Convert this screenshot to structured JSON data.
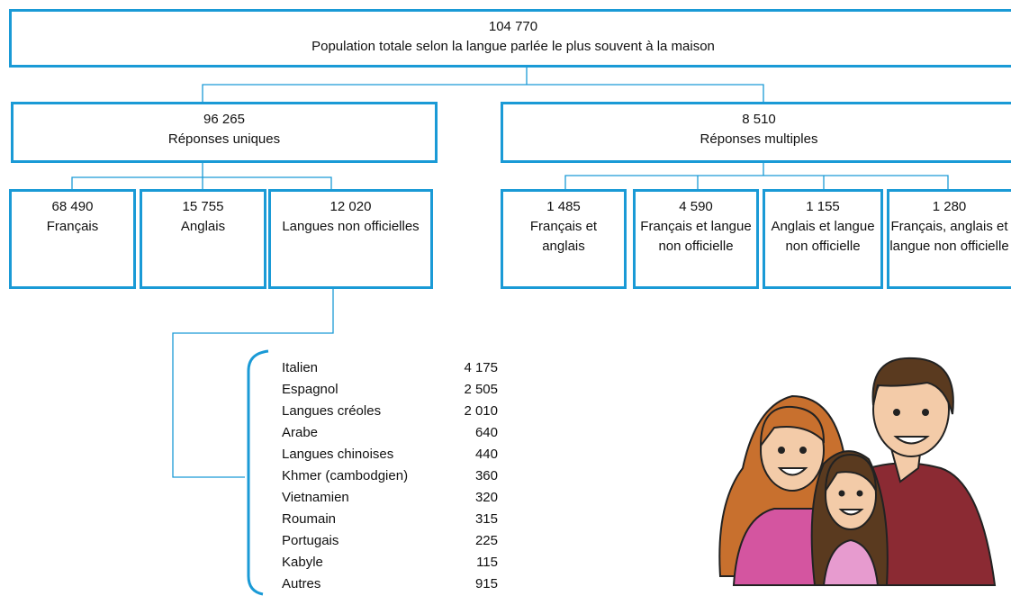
{
  "root": {
    "value": "104 770",
    "label": "Population totale selon la langue parlée le plus souvent à la maison"
  },
  "groups": [
    {
      "value": "96 265",
      "label": "Réponses uniques",
      "children": [
        {
          "value": "68 490",
          "label": "Français"
        },
        {
          "value": "15 755",
          "label": "Anglais"
        },
        {
          "value": "12 020",
          "label": "Langues non officielles"
        }
      ]
    },
    {
      "value": "8 510",
      "label": "Réponses multiples",
      "children": [
        {
          "value": "1 485",
          "label": "Français et anglais"
        },
        {
          "value": "4 590",
          "label": "Français et langue non officielle"
        },
        {
          "value": "1 155",
          "label": "Anglais et langue non officielle"
        },
        {
          "value": "1 280",
          "label": "Français, anglais et langue non officielle"
        }
      ]
    }
  ],
  "list": {
    "rows": [
      [
        "Italien",
        "4 175"
      ],
      [
        "Espagnol",
        "2 505"
      ],
      [
        "Langues créoles",
        "2 010"
      ],
      [
        "Arabe",
        "640"
      ],
      [
        "Langues chinoises",
        "440"
      ],
      [
        "Khmer (cambodgien)",
        "360"
      ],
      [
        "Vietnamien",
        "320"
      ],
      [
        "Roumain",
        "315"
      ],
      [
        "Portugais",
        "225"
      ],
      [
        "Kabyle",
        "115"
      ],
      [
        "Autres",
        "915"
      ]
    ]
  }
}
